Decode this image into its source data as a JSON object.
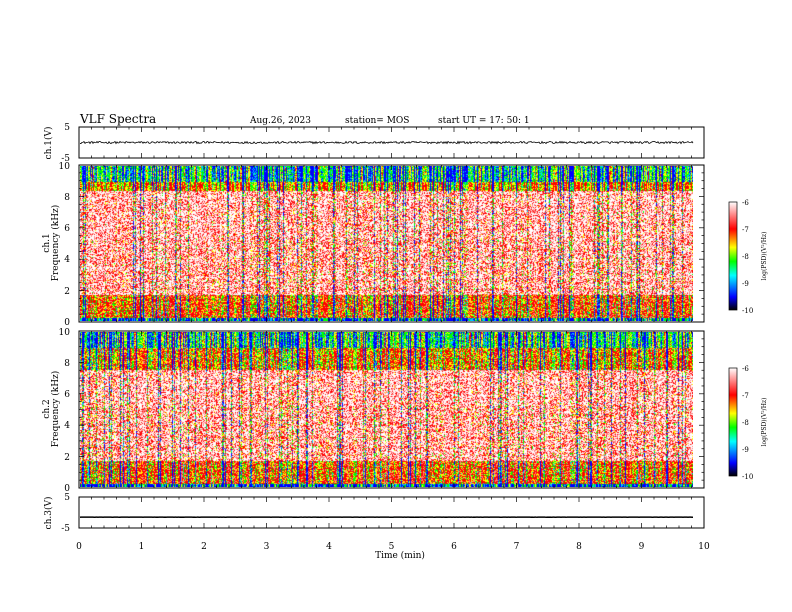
{
  "header": {
    "title": "VLF Spectra",
    "date": "Aug.26, 2023",
    "station": "station= MOS",
    "start": "start  UT  =   17: 50: 1"
  },
  "chart_data": {
    "type": "heatmap",
    "xlabel": "Time  (min)",
    "xlim": [
      0,
      10
    ],
    "xticks": [
      "0",
      "1",
      "2",
      "3",
      "4",
      "5",
      "6",
      "7",
      "8",
      "9",
      "10"
    ],
    "panels": [
      {
        "name": "ch1-waveform",
        "ylabel": "ch.1(V)",
        "ylim": [
          -5,
          5
        ],
        "yticks": [
          "5",
          "-5"
        ],
        "level": 0,
        "noise": 0.35,
        "color": "#000000"
      },
      {
        "name": "ch1-spectrogram",
        "ylabel_line1": "ch.1",
        "ylabel_line2": "Frequency  (kHz)",
        "ylim": [
          0,
          10
        ],
        "yticks": [
          "0",
          "2",
          "4",
          "6",
          "8",
          "10"
        ],
        "colorbar": {
          "label": "log(PSD)(V²/Hz)",
          "range": [
            -10,
            -6
          ],
          "ticks": [
            "-6",
            "-7",
            "-8",
            "-9",
            "-10"
          ]
        }
      },
      {
        "name": "ch2-spectrogram",
        "ylabel_line1": "ch.2",
        "ylabel_line2": "Frequency  (kHz)",
        "ylim": [
          0,
          10
        ],
        "yticks": [
          "0",
          "2",
          "4",
          "6",
          "8",
          "10"
        ],
        "colorbar": {
          "label": "log(PSD)(V²/Hz)",
          "range": [
            -10,
            -6
          ],
          "ticks": [
            "-6",
            "-7",
            "-8",
            "-9",
            "-10"
          ]
        }
      },
      {
        "name": "ch3-waveform",
        "ylabel": "ch.3(V)",
        "ylim": [
          -5,
          5
        ],
        "yticks": [
          "5",
          "-5"
        ],
        "level": -1.5,
        "noise": 0.02,
        "color": "#000000"
      }
    ],
    "data_end_min": 9.83,
    "colormap": [
      "#000000",
      "#0000ff",
      "#00ffff",
      "#00ff00",
      "#ffff00",
      "#ff0000",
      "#ffffff"
    ]
  }
}
